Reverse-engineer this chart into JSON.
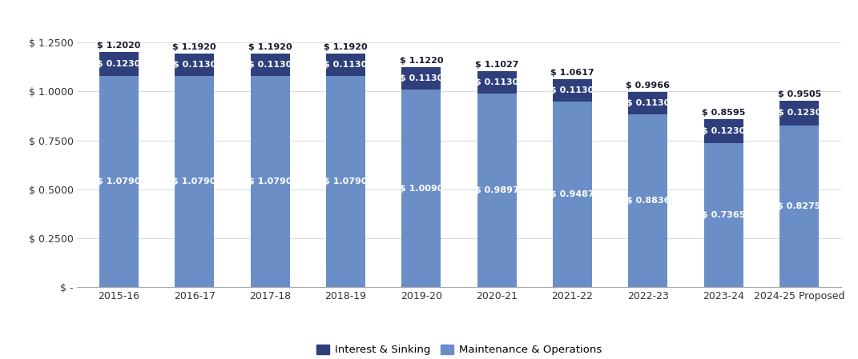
{
  "categories": [
    "2015-16",
    "2016-17",
    "2017-18",
    "2018-19",
    "2019-20",
    "2020-21",
    "2021-22",
    "2022-23",
    "2023-24",
    "2024-25 Proposed"
  ],
  "maintenance_ops": [
    1.079,
    1.079,
    1.079,
    1.079,
    1.009,
    0.9897,
    0.9487,
    0.8836,
    0.7365,
    0.8275
  ],
  "interest_sinking": [
    0.123,
    0.113,
    0.113,
    0.113,
    0.113,
    0.113,
    0.113,
    0.113,
    0.123,
    0.123
  ],
  "totals": [
    1.202,
    1.192,
    1.192,
    1.192,
    1.122,
    1.1027,
    1.0617,
    0.9966,
    0.8595,
    0.9505
  ],
  "color_mo": "#6b8ec7",
  "color_is": "#2e3f7c",
  "background_color": "#ffffff",
  "grid_color": "#d8dce8",
  "ylim": [
    0,
    1.32
  ],
  "yticks": [
    0,
    0.25,
    0.5,
    0.75,
    1.0,
    1.25
  ],
  "ytick_labels": [
    "$ -",
    "$ 0.2500",
    "$ 0.5000",
    "$ 0.7500",
    "$ 1.0000",
    "$ 1.2500"
  ],
  "legend_is": "Interest & Sinking",
  "legend_mo": "Maintenance & Operations",
  "bar_width": 0.52,
  "label_fontsize": 8.0,
  "tick_fontsize": 9.0,
  "total_label_color": "#1a1a2e",
  "axis_line_color": "#aaaaaa"
}
